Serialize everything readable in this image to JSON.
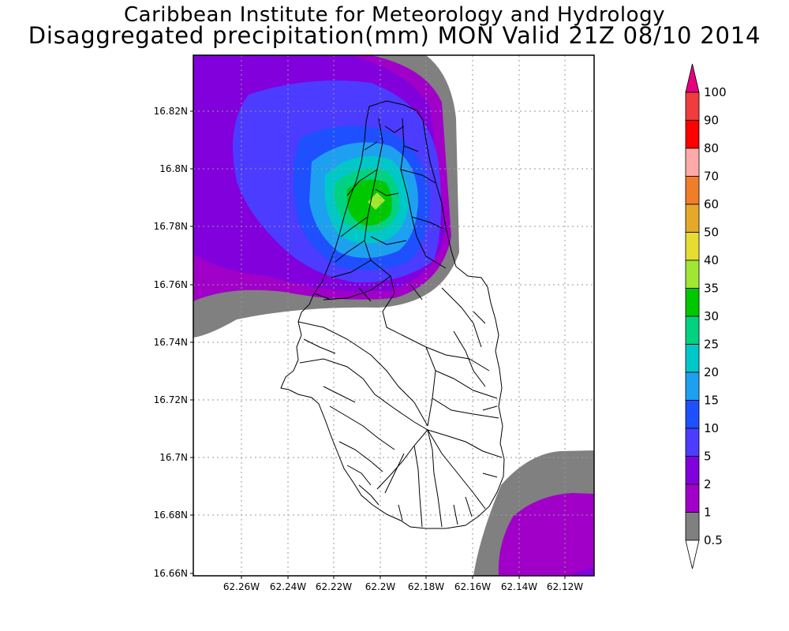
{
  "header": {
    "title": "Caribbean Institute for Meteorology and Hydrology",
    "subtitle": "Disaggregated precipitation(mm) MON Valid 21Z 08/10 2014"
  },
  "map": {
    "lat_labels": [
      "16.82N",
      "16.8N",
      "16.78N",
      "16.76N",
      "16.74N",
      "16.72N",
      "16.7N",
      "16.68N",
      "16.66N"
    ],
    "lon_labels": [
      "62.26W",
      "62.24W",
      "62.22W",
      "62.2W",
      "62.18W",
      "62.16W",
      "62.14W",
      "62.12W"
    ]
  },
  "legend": {
    "labels": [
      "100",
      "90",
      "80",
      "70",
      "60",
      "50",
      "40",
      "35",
      "30",
      "25",
      "20",
      "15",
      "10",
      "5",
      "2",
      "1",
      "0.5"
    ],
    "colors": [
      "#e6007e",
      "#f03c3c",
      "#ff0000",
      "#ffaaaa",
      "#f07d28",
      "#e6a828",
      "#e6dc32",
      "#a0e632",
      "#00c800",
      "#00d282",
      "#00c8c8",
      "#1ea0f0",
      "#1e50ff",
      "#4b3cff",
      "#8200dc",
      "#a000c8",
      "#808080",
      "#ffffff"
    ]
  }
}
